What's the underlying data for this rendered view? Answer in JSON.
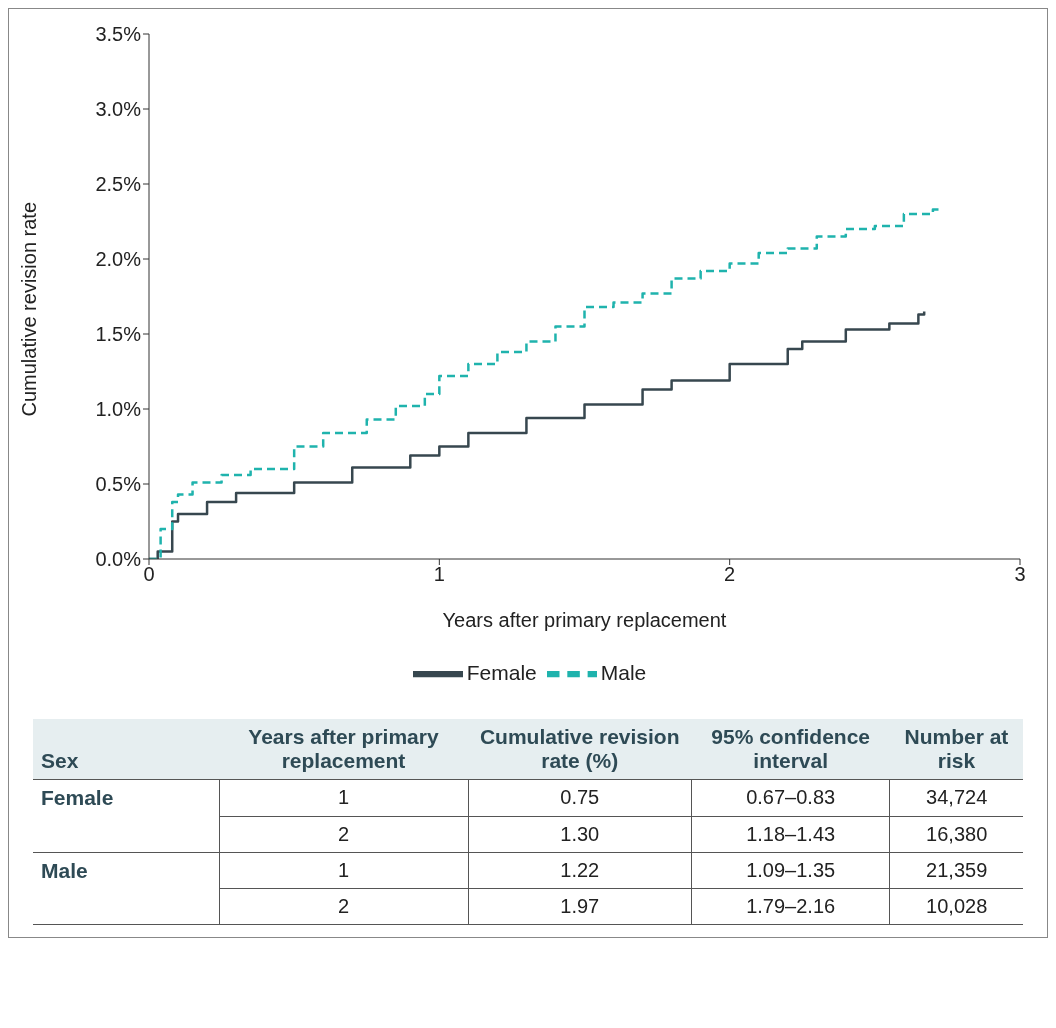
{
  "chart_data": [
    {
      "type": "step",
      "xlabel": "Years after primary replacement",
      "ylabel": "Cumulative revision rate",
      "xlim": [
        0,
        3
      ],
      "xticks": [
        0,
        1,
        2,
        3
      ],
      "ylim": [
        0,
        3.5
      ],
      "yticks": [
        {
          "value": 0,
          "label": "0.0%"
        },
        {
          "value": 0.5,
          "label": "0.5%"
        },
        {
          "value": 1,
          "label": "1.0%"
        },
        {
          "value": 1.5,
          "label": "1.5%"
        },
        {
          "value": 2,
          "label": "2.0%"
        },
        {
          "value": 2.5,
          "label": "2.5%"
        },
        {
          "value": 3,
          "label": "3.0%"
        },
        {
          "value": 3.5,
          "label": "3.5%"
        }
      ],
      "legend": "bottom",
      "series": [
        {
          "name": "Female",
          "color": "#37474f",
          "line_style": "solid",
          "x": [
            0,
            0.03,
            0.08,
            0.1,
            0.2,
            0.3,
            0.5,
            0.7,
            0.9,
            1.0,
            1.1,
            1.2,
            1.3,
            1.5,
            1.7,
            1.8,
            2.0,
            2.2,
            2.25,
            2.4,
            2.55,
            2.65,
            2.67
          ],
          "values": [
            0,
            0.05,
            0.25,
            0.3,
            0.38,
            0.44,
            0.51,
            0.61,
            0.69,
            0.75,
            0.84,
            0.84,
            0.94,
            1.03,
            1.13,
            1.19,
            1.3,
            1.4,
            1.45,
            1.53,
            1.57,
            1.63,
            1.65
          ]
        },
        {
          "name": "Male",
          "color": "#1fb3ad",
          "line_style": "dashed",
          "x": [
            0,
            0.04,
            0.08,
            0.1,
            0.15,
            0.25,
            0.35,
            0.5,
            0.6,
            0.75,
            0.85,
            0.95,
            1.0,
            1.1,
            1.2,
            1.3,
            1.4,
            1.5,
            1.6,
            1.7,
            1.8,
            1.9,
            2.0,
            2.1,
            2.2,
            2.3,
            2.4,
            2.5,
            2.6,
            2.7,
            2.72
          ],
          "values": [
            0,
            0.2,
            0.38,
            0.43,
            0.51,
            0.56,
            0.6,
            0.75,
            0.84,
            0.93,
            1.02,
            1.1,
            1.22,
            1.3,
            1.38,
            1.45,
            1.55,
            1.68,
            1.71,
            1.77,
            1.87,
            1.92,
            1.97,
            2.04,
            2.07,
            2.15,
            2.2,
            2.22,
            2.3,
            2.33,
            2.36
          ]
        }
      ]
    },
    {
      "type": "other",
      "categories": [
        "Sex",
        "Years after primary replacement",
        "Cumulative revision rate (%)",
        "95% confidence interval",
        "Number at risk"
      ],
      "y_categories": [
        "Female",
        null,
        "Male",
        null
      ],
      "cell_labels": [
        [
          "1",
          "0.75",
          "0.67–0.83",
          "34,724"
        ],
        [
          "2",
          "1.30",
          "1.18–1.43",
          "16,380"
        ],
        [
          "1",
          "1.22",
          "1.09–1.35",
          "21,359"
        ],
        [
          "2",
          "1.97",
          "1.79–2.16",
          "10,028"
        ]
      ]
    }
  ]
}
